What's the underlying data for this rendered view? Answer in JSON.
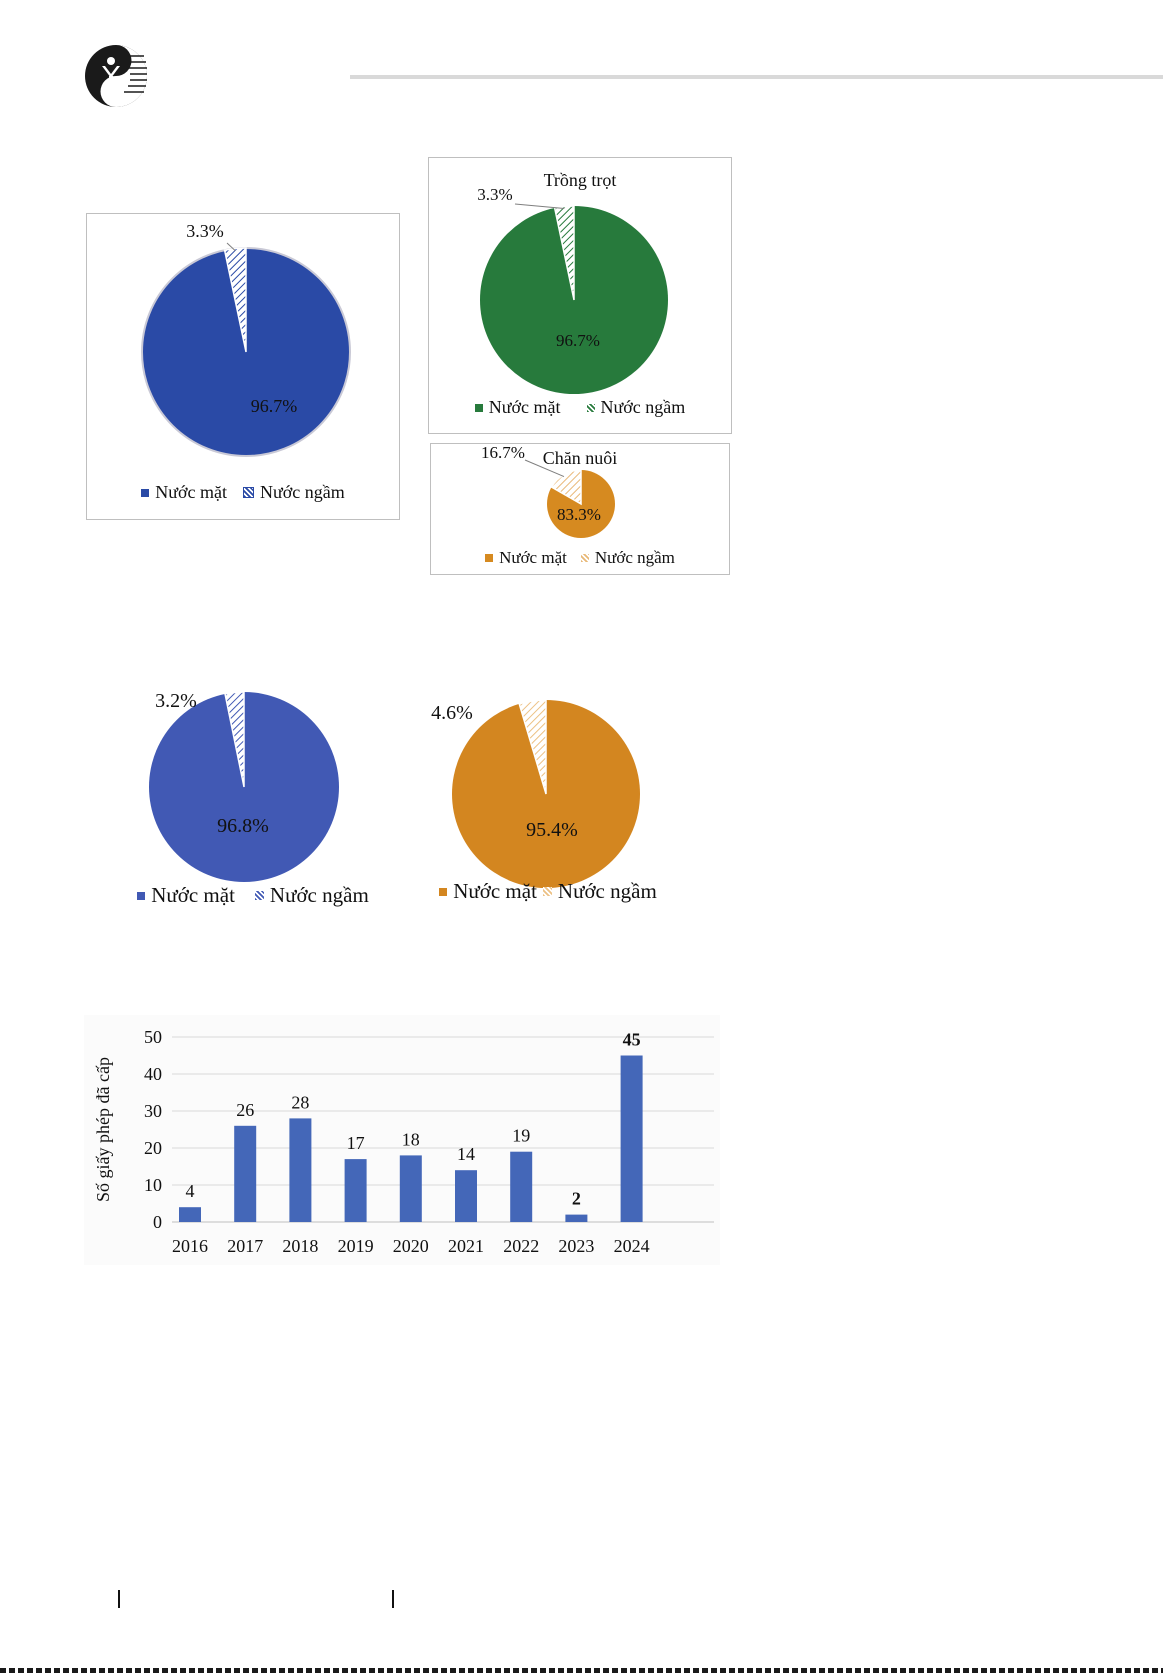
{
  "colors": {
    "blue_dark": "#2a4aa6",
    "green": "#277a3c",
    "orange": "#d68a20",
    "blue_mid": "#4159b4",
    "orange_bright": "#d38620",
    "bar_blue": "#4467b8",
    "grid": "#d9d9d9"
  },
  "logo": {
    "icon": "publisher-logo-icon"
  },
  "charts": {
    "pie_total": {
      "type": "pie",
      "title": "",
      "slices": [
        {
          "label": "Nước mặt",
          "value": 96.7,
          "display": "96.7%"
        },
        {
          "label": "Nước ngầm",
          "value": 3.3,
          "display": "3.3%"
        }
      ]
    },
    "pie_trong_trot": {
      "type": "pie",
      "title": "Trồng trọt",
      "slices": [
        {
          "label": "Nước mặt",
          "value": 96.7,
          "display": "96.7%"
        },
        {
          "label": "Nước ngầm",
          "value": 3.3,
          "display": "3.3%"
        }
      ]
    },
    "pie_chan_nuoi": {
      "type": "pie",
      "title": "Chăn nuôi",
      "slices": [
        {
          "label": "Nước mặt",
          "value": 83.3,
          "display": "83.3%"
        },
        {
          "label": "Nước ngầm",
          "value": 16.7,
          "display": "16.7%"
        }
      ]
    },
    "pie_blue_2": {
      "type": "pie",
      "title": "",
      "slices": [
        {
          "label": "Nước mặt",
          "value": 96.8,
          "display": "96.8%"
        },
        {
          "label": "Nước ngầm",
          "value": 3.2,
          "display": "3.2%"
        }
      ]
    },
    "pie_orange_2": {
      "type": "pie",
      "title": "",
      "slices": [
        {
          "label": "Nước mặt",
          "value": 95.4,
          "display": "95.4%"
        },
        {
          "label": "Nước ngầm",
          "value": 4.6,
          "display": "4.6%"
        }
      ]
    }
  },
  "chart_data": [
    {
      "type": "pie",
      "title": "",
      "categories": [
        "Nước mặt",
        "Nước ngầm"
      ],
      "values": [
        96.7,
        3.3
      ],
      "unit": "%",
      "legend": "bottom"
    },
    {
      "type": "pie",
      "title": "Trồng trọt",
      "categories": [
        "Nước mặt",
        "Nước ngầm"
      ],
      "values": [
        96.7,
        3.3
      ],
      "unit": "%",
      "legend": "bottom"
    },
    {
      "type": "pie",
      "title": "Chăn nuôi",
      "categories": [
        "Nước mặt",
        "Nước ngầm"
      ],
      "values": [
        83.3,
        16.7
      ],
      "unit": "%",
      "legend": "bottom"
    },
    {
      "type": "pie",
      "title": "",
      "categories": [
        "Nước mặt",
        "Nước ngầm"
      ],
      "values": [
        96.8,
        3.2
      ],
      "unit": "%",
      "legend": "bottom"
    },
    {
      "type": "pie",
      "title": "",
      "categories": [
        "Nước mặt",
        "Nước ngầm"
      ],
      "values": [
        95.4,
        4.6
      ],
      "unit": "%",
      "legend": "bottom"
    },
    {
      "type": "bar",
      "title": "",
      "xlabel": "",
      "ylabel": "Số giấy phép đã cấp",
      "categories": [
        "2016",
        "2017",
        "2018",
        "2019",
        "2020",
        "2021",
        "2022",
        "2023",
        "2024"
      ],
      "values": [
        4,
        26,
        28,
        17,
        18,
        14,
        19,
        2,
        45
      ],
      "bold_labels": [
        "2023",
        "2024"
      ],
      "ylim": [
        0,
        50
      ],
      "yticks": [
        0,
        10,
        20,
        30,
        40,
        50
      ],
      "grid": true
    }
  ]
}
